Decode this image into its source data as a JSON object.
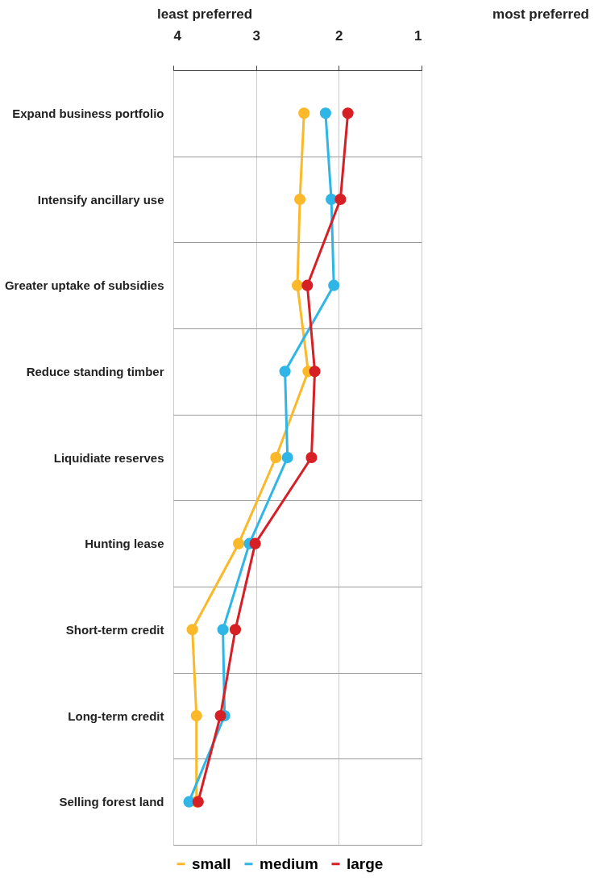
{
  "chart_data": {
    "type": "line",
    "orientation": "horizontal",
    "categories": [
      "Expand business portfolio",
      "Intensify ancillary use",
      "Greater uptake of subsidies",
      "Reduce standing timber",
      "Liquidiate reserves",
      "Hunting lease",
      "Short-term credit",
      "Long-term credit",
      "Selling forest land"
    ],
    "series": [
      {
        "name": "small",
        "color": "#fbb829",
        "values": [
          2.42,
          2.47,
          2.5,
          2.37,
          2.76,
          3.21,
          3.77,
          3.72,
          3.72
        ]
      },
      {
        "name": "medium",
        "color": "#2fb5e6",
        "values": [
          2.16,
          2.09,
          2.06,
          2.65,
          2.62,
          3.08,
          3.4,
          3.38,
          3.81
        ]
      },
      {
        "name": "large",
        "color": "#d71f26",
        "values": [
          1.89,
          1.98,
          2.38,
          2.29,
          2.33,
          3.01,
          3.25,
          3.43,
          3.7
        ]
      }
    ],
    "xlim": [
      4,
      1
    ],
    "xticks": [
      4,
      3,
      2,
      1
    ],
    "grid": true,
    "legend": "bottom",
    "marker": "circle",
    "line_style": "solid",
    "annotations": [
      "least preferred",
      "most preferred"
    ]
  }
}
